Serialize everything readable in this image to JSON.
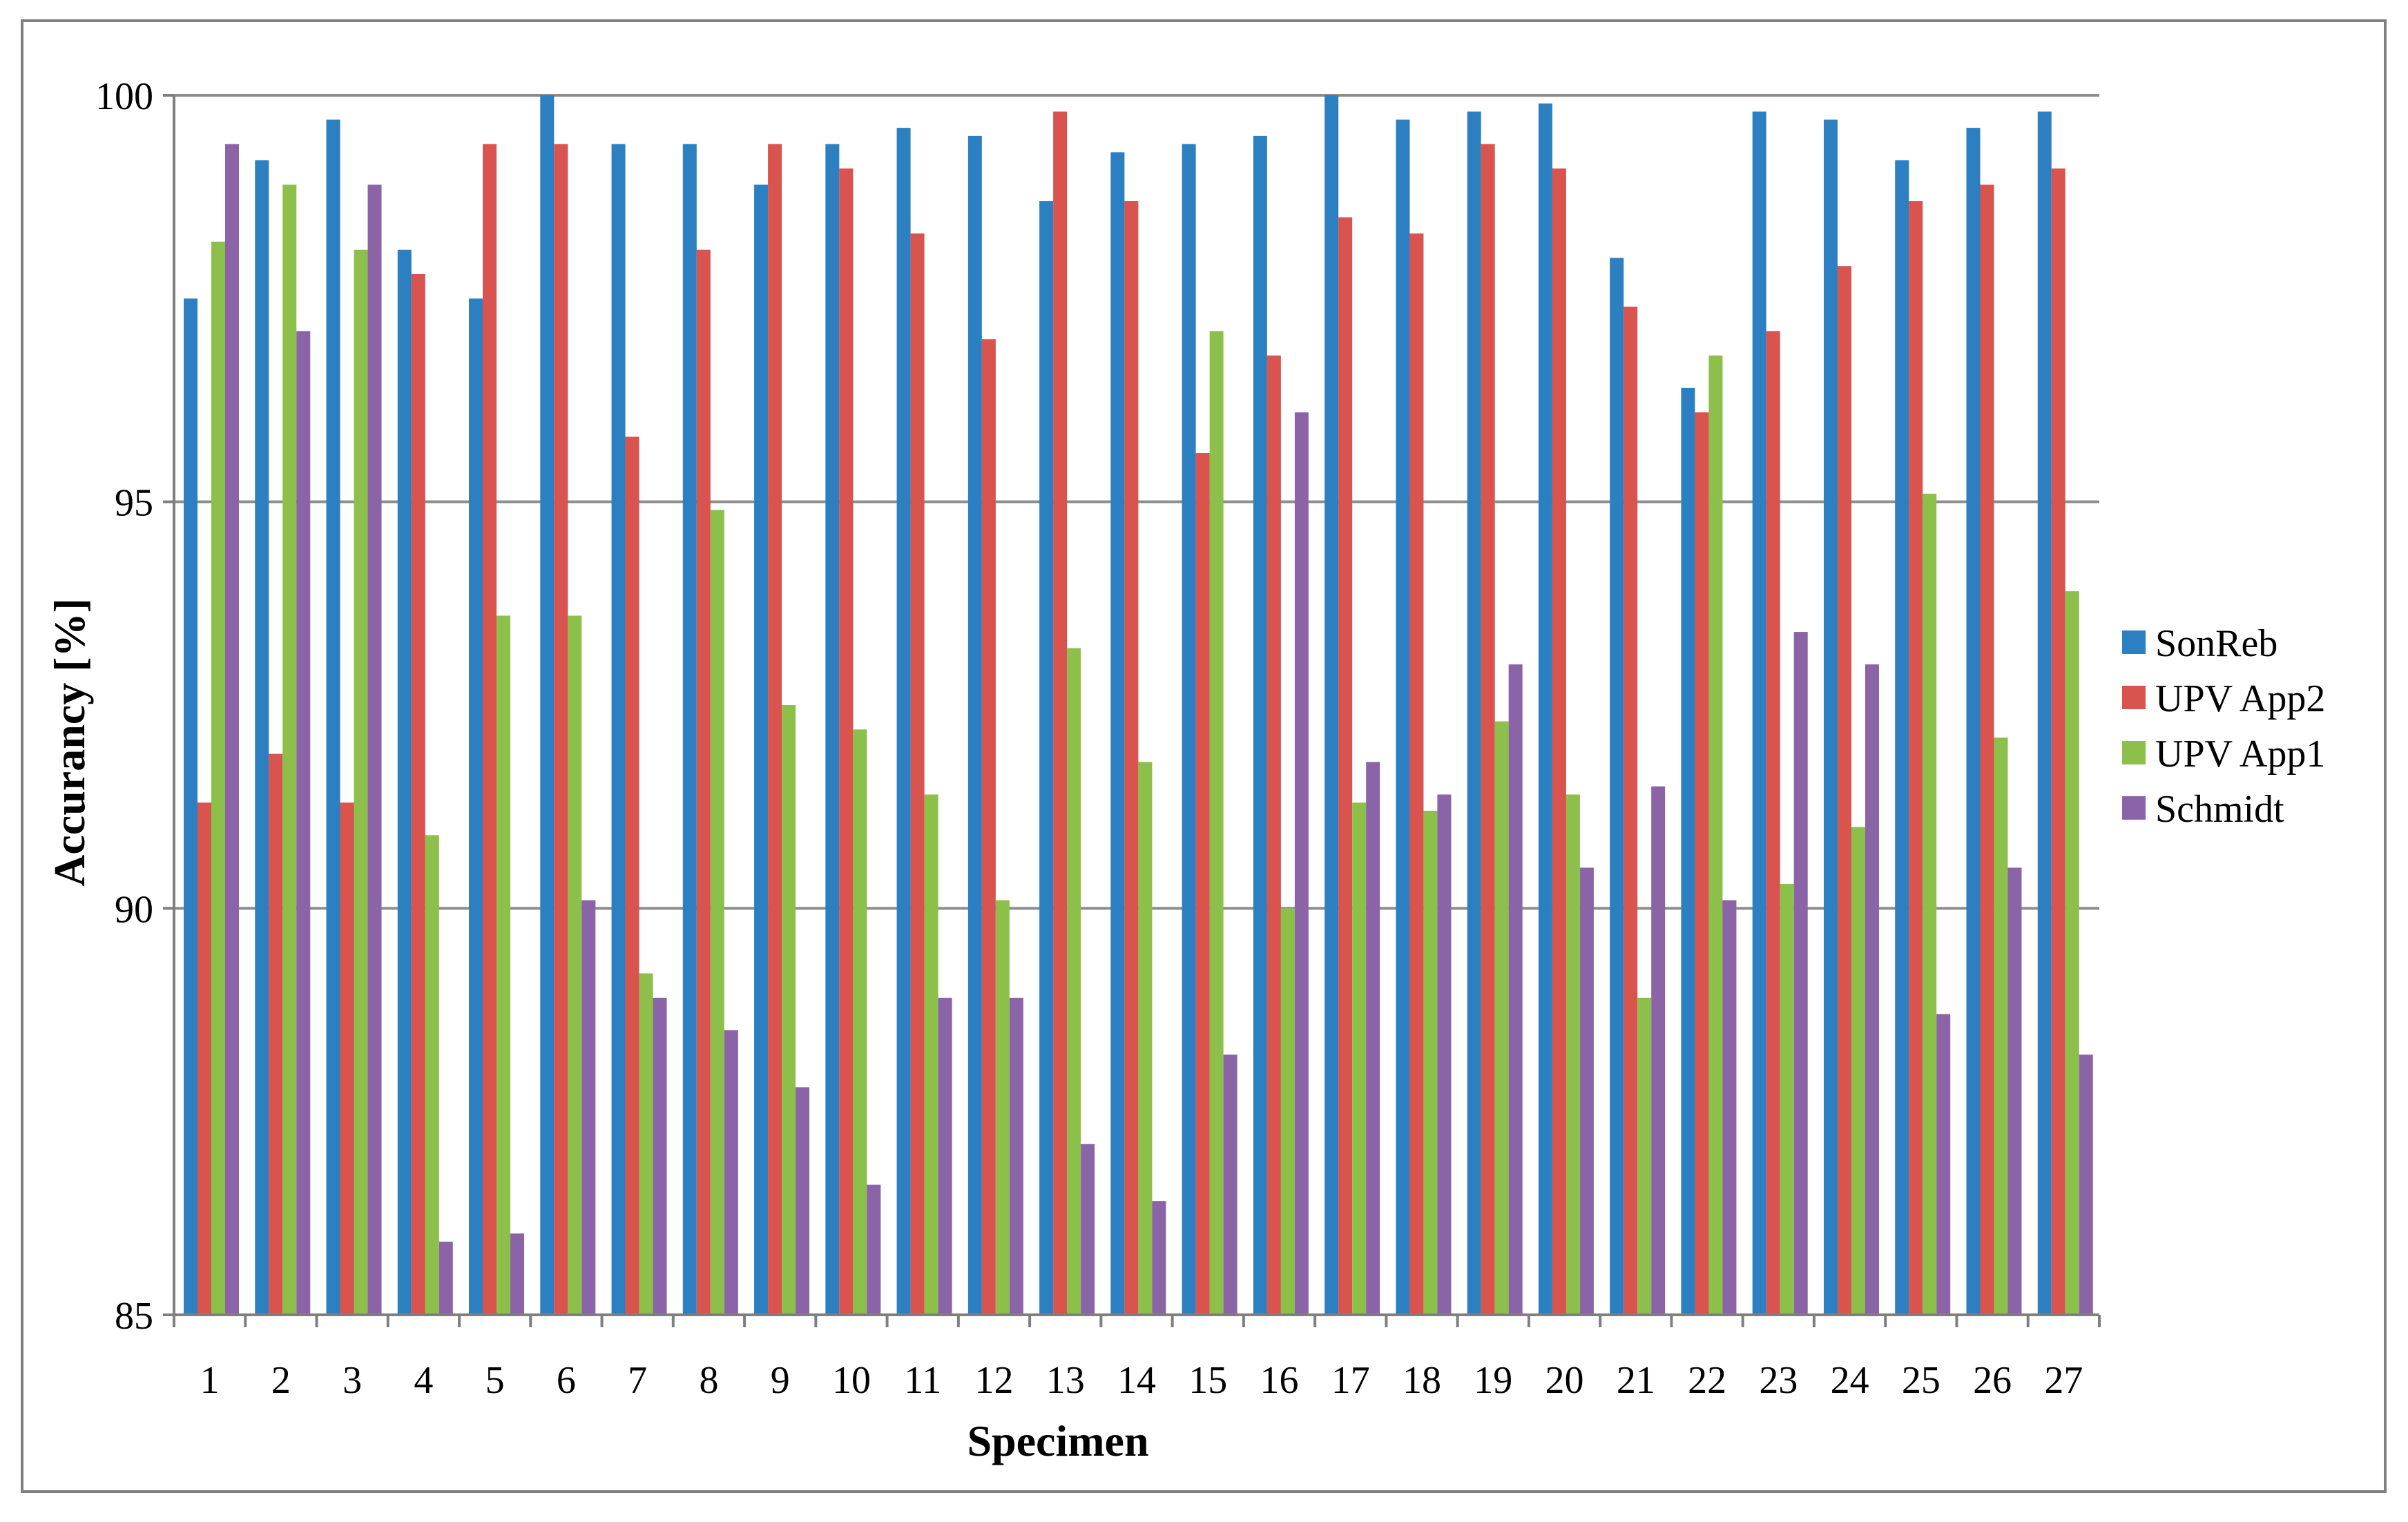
{
  "colors": {
    "SonReb": "#2C7FC0",
    "UPV App2": "#D9534F",
    "UPV App1": "#8DBF4B",
    "Schmidt": "#8B64A8",
    "grid": "#8C8C8C",
    "axis": "#7F7F7F",
    "frame": "#7F7F7F",
    "text": "#000000"
  },
  "chart_data": {
    "type": "bar",
    "xlabel": "Specimen",
    "ylabel": "Accurancy [%]",
    "ylim": [
      85,
      100
    ],
    "yticks": [
      85,
      90,
      95,
      100
    ],
    "grid": true,
    "legend_position": "right",
    "categories": [
      "1",
      "2",
      "3",
      "4",
      "5",
      "6",
      "7",
      "8",
      "9",
      "10",
      "11",
      "12",
      "13",
      "14",
      "15",
      "16",
      "17",
      "18",
      "19",
      "20",
      "21",
      "22",
      "23",
      "24",
      "25",
      "26",
      "27"
    ],
    "series": [
      {
        "name": "SonReb",
        "values": [
          97.5,
          99.2,
          99.7,
          98.1,
          97.5,
          100.0,
          99.4,
          99.4,
          98.9,
          99.4,
          99.6,
          99.5,
          98.7,
          99.3,
          99.4,
          99.5,
          100.0,
          99.7,
          99.8,
          99.9,
          98.0,
          96.4,
          99.8,
          99.7,
          99.2,
          99.6,
          99.8
        ]
      },
      {
        "name": "UPV App2",
        "values": [
          91.3,
          91.9,
          91.3,
          97.8,
          99.4,
          99.4,
          95.8,
          98.1,
          99.4,
          99.1,
          98.3,
          97.0,
          99.8,
          98.7,
          95.6,
          96.8,
          98.5,
          98.3,
          99.4,
          99.1,
          97.4,
          96.1,
          97.1,
          97.9,
          98.7,
          98.9,
          99.1
        ]
      },
      {
        "name": "UPV App1",
        "values": [
          98.2,
          98.9,
          98.1,
          90.9,
          93.6,
          93.6,
          89.2,
          94.9,
          92.5,
          92.2,
          91.4,
          90.1,
          93.2,
          91.8,
          97.1,
          90.0,
          91.3,
          91.2,
          92.3,
          91.4,
          88.9,
          96.8,
          90.3,
          91.0,
          95.1,
          92.1,
          93.9
        ]
      },
      {
        "name": "Schmidt",
        "values": [
          99.4,
          97.1,
          98.9,
          85.9,
          86.0,
          90.1,
          88.9,
          88.5,
          87.8,
          86.6,
          88.9,
          88.9,
          87.1,
          86.4,
          88.2,
          96.1,
          91.8,
          91.4,
          93.0,
          90.5,
          91.5,
          90.1,
          93.4,
          93.0,
          88.7,
          90.5,
          88.2
        ]
      }
    ]
  }
}
